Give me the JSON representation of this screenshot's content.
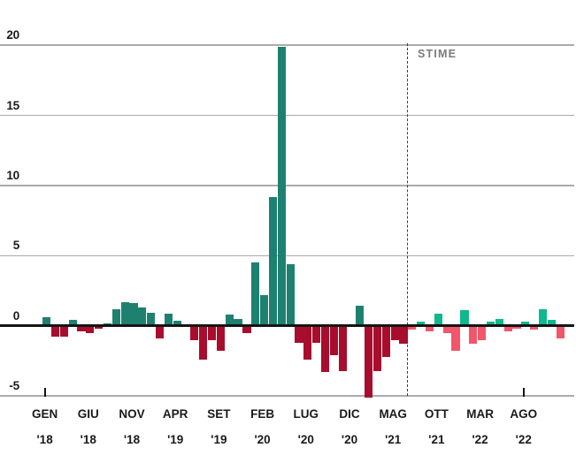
{
  "chart_data": {
    "type": "bar",
    "title": "",
    "annotation": {
      "label": "STIME",
      "starts_at_index": 42
    },
    "y_axis": {
      "ticks": [
        20,
        15,
        10,
        5,
        0,
        -5
      ],
      "range": [
        -5.5,
        20.5
      ],
      "grid": true
    },
    "x_axis": {
      "ticks": [
        {
          "index": 0,
          "month": "GEN",
          "year": "'18"
        },
        {
          "index": 5,
          "month": "GIU",
          "year": "'18"
        },
        {
          "index": 10,
          "month": "NOV",
          "year": "'18"
        },
        {
          "index": 15,
          "month": "APR",
          "year": "'19"
        },
        {
          "index": 20,
          "month": "SET",
          "year": "'19"
        },
        {
          "index": 25,
          "month": "FEB",
          "year": "'20"
        },
        {
          "index": 30,
          "month": "LUG",
          "year": "'20"
        },
        {
          "index": 35,
          "month": "DIC",
          "year": "'20"
        },
        {
          "index": 40,
          "month": "MAG",
          "year": "'21"
        },
        {
          "index": 45,
          "month": "OTT",
          "year": "'21"
        },
        {
          "index": 50,
          "month": "MAR",
          "year": "'22"
        },
        {
          "index": 55,
          "month": "AGO",
          "year": "'22"
        }
      ],
      "edge_marker_indices": [
        0,
        55
      ]
    },
    "points": [
      {
        "m": "GEN '18",
        "v": 0.6
      },
      {
        "m": "FEB '18",
        "v": -0.8
      },
      {
        "m": "MAR '18",
        "v": -0.8
      },
      {
        "m": "APR '18",
        "v": 0.4
      },
      {
        "m": "MAG '18",
        "v": -0.4
      },
      {
        "m": "GIU '18",
        "v": -0.55
      },
      {
        "m": "LUG '18",
        "v": -0.2
      },
      {
        "m": "AGO '18",
        "v": 0.2
      },
      {
        "m": "SET '18",
        "v": 1.2
      },
      {
        "m": "OTT '18",
        "v": 1.7
      },
      {
        "m": "NOV '18",
        "v": 1.6
      },
      {
        "m": "DIC '18",
        "v": 1.3
      },
      {
        "m": "GEN '19",
        "v": 0.9
      },
      {
        "m": "FEB '19",
        "v": -0.9
      },
      {
        "m": "MAR '19",
        "v": 0.85
      },
      {
        "m": "APR '19",
        "v": 0.35
      },
      {
        "m": "MAG '19",
        "v": 0
      },
      {
        "m": "GIU '19",
        "v": -1.0
      },
      {
        "m": "LUG '19",
        "v": -2.4
      },
      {
        "m": "AGO '19",
        "v": -1.0
      },
      {
        "m": "SET '19",
        "v": -1.8
      },
      {
        "m": "OTT '19",
        "v": 0.8
      },
      {
        "m": "NOV '19",
        "v": 0.5
      },
      {
        "m": "DIC '19",
        "v": -0.5
      },
      {
        "m": "GEN '20",
        "v": 4.5
      },
      {
        "m": "FEB '20",
        "v": 2.2
      },
      {
        "m": "MAR '20",
        "v": 9.2
      },
      {
        "m": "APR '20",
        "v": 19.9
      },
      {
        "m": "MAG '20",
        "v": 4.4
      },
      {
        "m": "GIU '20",
        "v": -1.2
      },
      {
        "m": "LUG '20",
        "v": -2.4
      },
      {
        "m": "AGO '20",
        "v": -1.2
      },
      {
        "m": "SET '20",
        "v": -3.3
      },
      {
        "m": "OTT '20",
        "v": -2.1
      },
      {
        "m": "NOV '20",
        "v": -3.2
      },
      {
        "m": "DIC '20",
        "v": 0
      },
      {
        "m": "GEN '21",
        "v": 1.4
      },
      {
        "m": "FEB '21",
        "v": -5.1
      },
      {
        "m": "MAR '21",
        "v": -3.2
      },
      {
        "m": "APR '21",
        "v": -2.2
      },
      {
        "m": "MAG '21",
        "v": -1.0
      },
      {
        "m": "GIU '21",
        "v": -1.3
      },
      {
        "m": "LUG '21",
        "v": -0.3
      },
      {
        "m": "AGO '21",
        "v": 0.3
      },
      {
        "m": "SET '21",
        "v": -0.4
      },
      {
        "m": "OTT '21",
        "v": 0.85
      },
      {
        "m": "NOV '21",
        "v": -0.5
      },
      {
        "m": "DIC '21",
        "v": -1.8
      },
      {
        "m": "GEN '22",
        "v": 1.1
      },
      {
        "m": "FEB '22",
        "v": -1.3
      },
      {
        "m": "MAR '22",
        "v": -1.0
      },
      {
        "m": "APR '22",
        "v": 0.3
      },
      {
        "m": "MAG '22",
        "v": 0.5
      },
      {
        "m": "GIU '22",
        "v": -0.4
      },
      {
        "m": "LUG '22",
        "v": -0.2
      },
      {
        "m": "AGO '22",
        "v": 0.3
      },
      {
        "m": "SET '22",
        "v": -0.3
      },
      {
        "m": "OTT '22",
        "v": 1.2
      },
      {
        "m": "NOV '22",
        "v": 0.4
      },
      {
        "m": "DIC '22",
        "v": -0.9
      }
    ],
    "colors": {
      "actual_positive": "#1E8170",
      "actual_negative": "#A80D2D",
      "estimate_positive": "#10B88C",
      "estimate_negative": "#F2566B",
      "gridline": "#ABABAB",
      "zero_line": "#141414",
      "text": "#1A1A1A",
      "annotation_text": "#7B7B7B"
    }
  }
}
